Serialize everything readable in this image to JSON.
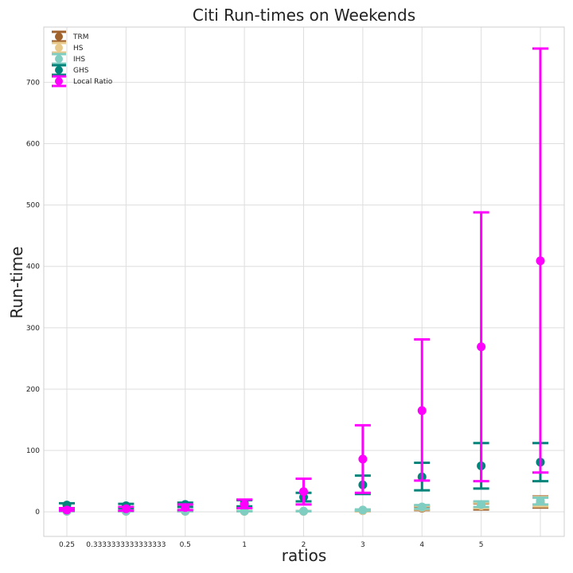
{
  "chart_data": {
    "type": "scatter",
    "title": "Citi Run-times on Weekends",
    "xlabel": "ratios",
    "ylabel": "Run-time",
    "x_tick_labels": [
      "0.25",
      "0.3333333333333333",
      "0.5",
      "1",
      "2",
      "3",
      "4",
      "5",
      ""
    ],
    "yticks": [
      0,
      100,
      200,
      300,
      400,
      500,
      600,
      700
    ],
    "ylim": [
      -40,
      790
    ],
    "grid": true,
    "legend_position": "top-left",
    "series": [
      {
        "name": "TRM",
        "color": "#a0622d",
        "values": [
          1,
          1,
          1,
          1,
          1,
          2,
          6,
          9,
          16
        ],
        "lower": [
          1,
          1,
          1,
          1,
          1,
          1,
          3,
          4,
          7
        ],
        "upper": [
          1,
          1,
          1,
          1,
          1,
          3,
          9,
          14,
          25
        ]
      },
      {
        "name": "HS",
        "color": "#e8c98c",
        "values": [
          1,
          1,
          1,
          1,
          1,
          2,
          7,
          10,
          17
        ],
        "lower": [
          1,
          1,
          1,
          1,
          1,
          1,
          4,
          6,
          9
        ],
        "upper": [
          1,
          1,
          1,
          1,
          1,
          3,
          10,
          15,
          24
        ]
      },
      {
        "name": "IHS",
        "color": "#80cdc1",
        "values": [
          1,
          1,
          1,
          1,
          1,
          3,
          8,
          12,
          18
        ],
        "lower": [
          1,
          1,
          1,
          1,
          1,
          2,
          5,
          8,
          12
        ],
        "upper": [
          1,
          1,
          1,
          1,
          1,
          4,
          11,
          17,
          23
        ]
      },
      {
        "name": "GHS",
        "color": "#01857a",
        "values": [
          11,
          10,
          12,
          14,
          24,
          44,
          57,
          75,
          81
        ],
        "lower": [
          5,
          6,
          8,
          9,
          17,
          29,
          35,
          38,
          50
        ],
        "upper": [
          14,
          13,
          15,
          19,
          31,
          59,
          80,
          112,
          112
        ]
      },
      {
        "name": "Local Ratio",
        "color": "#ff00ff",
        "values": [
          3,
          5,
          7,
          12,
          33,
          86,
          165,
          269,
          409
        ],
        "lower": [
          2,
          2,
          3,
          6,
          12,
          31,
          51,
          50,
          64
        ],
        "upper": [
          6,
          8,
          12,
          20,
          54,
          141,
          281,
          488,
          755
        ]
      }
    ]
  }
}
